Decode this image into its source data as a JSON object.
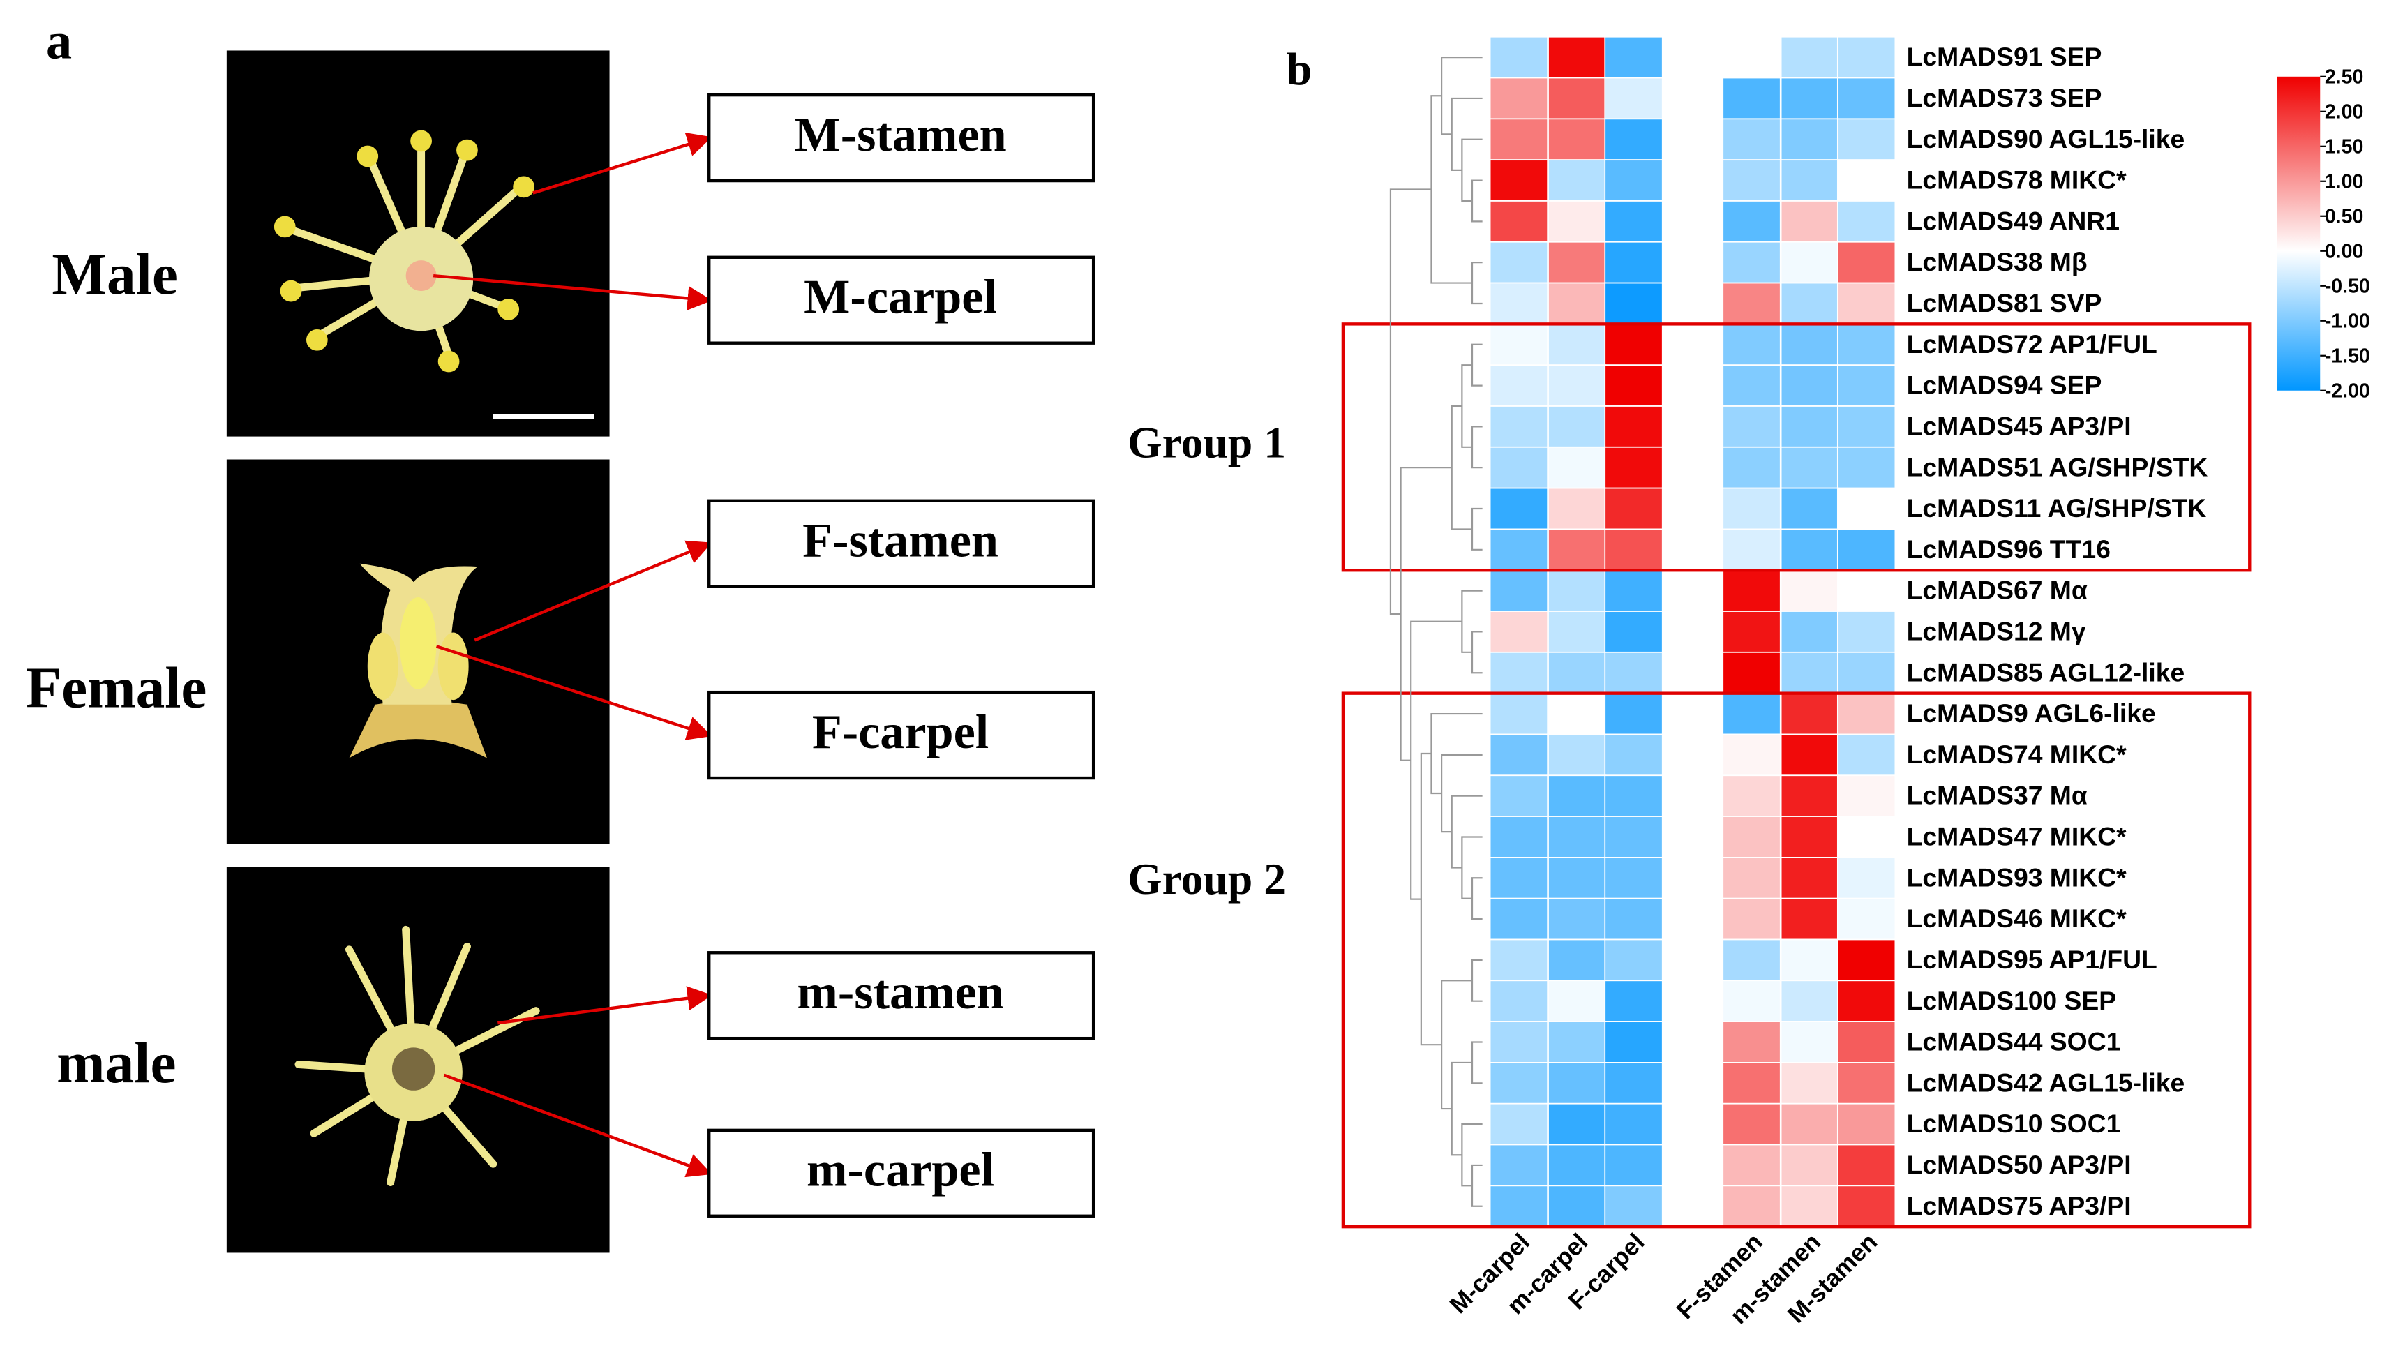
{
  "panel_a": {
    "label": "a",
    "rows": [
      {
        "name": "Male",
        "parts": [
          "M-stamen",
          "M-carpel"
        ]
      },
      {
        "name": "Female",
        "parts": [
          "F-stamen",
          "F-carpel"
        ]
      },
      {
        "name": "male",
        "parts": [
          "m-stamen",
          "m-carpel"
        ]
      }
    ]
  },
  "chart_data": {
    "type": "heatmap",
    "panel_label": "b",
    "columns": [
      "M-carpel",
      "m-carpel",
      "F-carpel",
      "F-stamen",
      "m-stamen",
      "M-stamen"
    ],
    "rows": [
      "LcMADS91 SEP",
      "LcMADS73 SEP",
      "LcMADS90 AGL15-like",
      "LcMADS78 MIKC*",
      "LcMADS49 ANR1",
      "LcMADS38 Mβ",
      "LcMADS81 SVP",
      "LcMADS72 AP1/FUL",
      "LcMADS94 SEP",
      "LcMADS45 AP3/PI",
      "LcMADS51 AG/SHP/STK",
      "LcMADS11 AG/SHP/STK",
      "LcMADS96 TT16",
      "LcMADS67 Mα",
      "LcMADS12 Mγ",
      "LcMADS85 AGL12-like",
      "LcMADS9 AGL6-like",
      "LcMADS74 MIKC*",
      "LcMADS37 Mα",
      "LcMADS47 MIKC*",
      "LcMADS93 MIKC*",
      "LcMADS46 MIKC*",
      "LcMADS95 AP1/FUL",
      "LcMADS100 SEP",
      "LcMADS44 SOC1",
      "LcMADS42 AGL15-like",
      "LcMADS10 SOC1",
      "LcMADS50 AP3/PI",
      "LcMADS75 AP3/PI"
    ],
    "values": [
      [
        -0.7,
        2.4,
        -1.4,
        0.0,
        -0.6,
        -0.6
      ],
      [
        1.0,
        1.6,
        -0.3,
        -1.4,
        -1.3,
        -1.2
      ],
      [
        1.3,
        1.4,
        -1.6,
        -0.8,
        -1.0,
        -0.6
      ],
      [
        2.4,
        -0.6,
        -1.3,
        -0.7,
        -0.8,
        0.0
      ],
      [
        1.8,
        0.2,
        -1.6,
        -1.3,
        0.6,
        -0.6
      ],
      [
        -0.6,
        1.3,
        -1.7,
        -0.8,
        -0.1,
        1.5
      ],
      [
        -0.3,
        0.7,
        -1.9,
        1.2,
        -0.7,
        0.5
      ],
      [
        -0.1,
        -0.4,
        2.5,
        -1.0,
        -1.1,
        -1.0
      ],
      [
        -0.3,
        -0.3,
        2.5,
        -1.0,
        -1.1,
        -1.0
      ],
      [
        -0.6,
        -0.6,
        2.4,
        -0.8,
        -1.0,
        -0.9
      ],
      [
        -0.7,
        -0.1,
        2.4,
        -0.9,
        -0.9,
        -0.9
      ],
      [
        -1.6,
        0.4,
        2.1,
        -0.4,
        -1.3,
        0.0
      ],
      [
        -1.2,
        1.4,
        1.7,
        -0.3,
        -1.3,
        -1.4
      ],
      [
        -1.2,
        -0.6,
        -1.5,
        2.4,
        0.1,
        0.0
      ],
      [
        0.4,
        -0.5,
        -1.6,
        2.3,
        -1.0,
        -0.6
      ],
      [
        -0.6,
        -0.8,
        -0.8,
        2.5,
        -0.8,
        -0.8
      ],
      [
        -0.6,
        0.0,
        -1.5,
        -1.4,
        2.1,
        0.6
      ],
      [
        -1.1,
        -0.6,
        -0.9,
        0.1,
        2.4,
        -0.6
      ],
      [
        -0.9,
        -1.3,
        -1.3,
        0.4,
        2.2,
        0.1
      ],
      [
        -1.2,
        -1.2,
        -1.2,
        0.6,
        2.2,
        0.0
      ],
      [
        -1.2,
        -1.2,
        -1.2,
        0.6,
        2.2,
        -0.2
      ],
      [
        -1.2,
        -1.1,
        -1.2,
        0.6,
        2.2,
        -0.1
      ],
      [
        -0.6,
        -1.2,
        -0.9,
        -0.7,
        -0.1,
        2.5
      ],
      [
        -0.7,
        -0.1,
        -1.6,
        -0.1,
        -0.4,
        2.4
      ],
      [
        -0.7,
        -0.9,
        -1.7,
        1.1,
        -0.1,
        1.6
      ],
      [
        -0.9,
        -1.2,
        -1.5,
        1.4,
        0.3,
        1.4
      ],
      [
        -0.6,
        -1.6,
        -1.5,
        1.4,
        0.8,
        1.0
      ],
      [
        -1.1,
        -1.4,
        -1.4,
        0.7,
        0.5,
        1.9
      ],
      [
        -1.2,
        -1.4,
        -1.0,
        0.7,
        0.4,
        1.9
      ]
    ],
    "zlim": [
      -2,
      2.5
    ],
    "zticks": [
      {
        "value": 2.5,
        "label": "2.50"
      },
      {
        "value": 2,
        "label": "2.00"
      },
      {
        "value": 1.5,
        "label": "1.50"
      },
      {
        "value": 1,
        "label": "1.00"
      },
      {
        "value": 0.5,
        "label": "0.50"
      },
      {
        "value": 0,
        "label": "0.00"
      },
      {
        "value": -0.5,
        "label": "-0.50"
      },
      {
        "value": -1,
        "label": "-1.00"
      },
      {
        "value": -1.5,
        "label": "-1.50"
      },
      {
        "value": -2,
        "label": "-2.00"
      }
    ],
    "colors": {
      "low": "#0096ff",
      "mid": "#ffffff",
      "high": "#f00000"
    },
    "groups": [
      {
        "label": "Group 1",
        "rows": [
          7,
          12
        ]
      },
      {
        "label": "Group 2",
        "rows": [
          16,
          28
        ]
      }
    ]
  }
}
